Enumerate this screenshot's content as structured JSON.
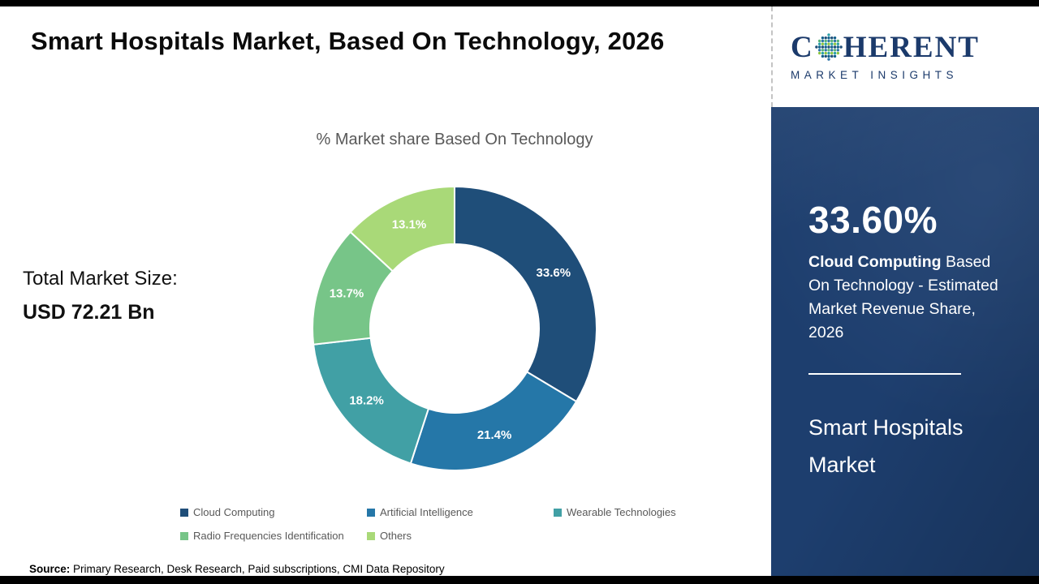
{
  "page": {
    "title": "Smart Hospitals Market, Based On Technology, 2026",
    "subtitle": "% Market share Based On Technology",
    "total_market_label": "Total Market Size:",
    "total_market_value": "USD 72.21 Bn",
    "source_label": "Source:",
    "source_text": " Primary Research, Desk Research, Paid subscriptions, CMI Data Repository"
  },
  "chart_data": {
    "type": "pie",
    "subtype": "donut",
    "title": "% Market share Based On Technology",
    "categories": [
      "Cloud Computing",
      "Artificial Intelligence",
      "Wearable Technologies",
      "Radio Frequencies Identification",
      "Others"
    ],
    "values": [
      33.6,
      21.4,
      18.2,
      13.7,
      13.1
    ],
    "labels": [
      "33.6%",
      "21.4%",
      "18.2%",
      "13.7%",
      "13.1%"
    ],
    "colors": [
      "#1F4E79",
      "#2577A8",
      "#41A0A5",
      "#77C588",
      "#A9D978"
    ],
    "start_angle_deg": 0,
    "direction": "clockwise",
    "legend_position": "bottom"
  },
  "sidebar": {
    "logo_brand_first": "C",
    "logo_brand_rest": "HERENT",
    "logo_tagline": "MARKET INSIGHTS",
    "highlight_value": "33.60%",
    "highlight_bold": "Cloud Computing",
    "highlight_rest": " Based On Technology - Estimated Market Revenue Share, 2026",
    "report_title": "Smart Hospitals Market",
    "panel_color": "#1d3e6e"
  }
}
